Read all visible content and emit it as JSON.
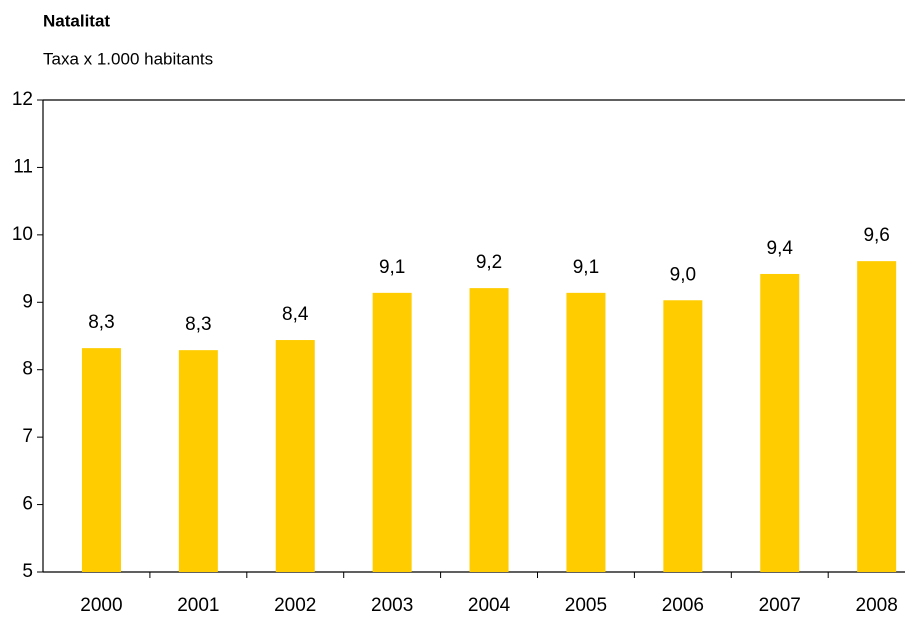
{
  "chart_data": {
    "type": "bar",
    "title": "Natalitat",
    "subtitle": "Taxa x 1.000 habitants",
    "categories": [
      "2000",
      "2001",
      "2002",
      "2003",
      "2004",
      "2005",
      "2006",
      "2007",
      "2008"
    ],
    "values": [
      8.32,
      8.29,
      8.44,
      9.14,
      9.21,
      9.14,
      9.03,
      9.42,
      9.61
    ],
    "value_labels": [
      "8,3",
      "8,3",
      "8,4",
      "9,1",
      "9,2",
      "9,1",
      "9,0",
      "9,4",
      "9,6"
    ],
    "color": "#ffcc00",
    "ylim": [
      5,
      12
    ],
    "yticks": [
      5,
      6,
      7,
      8,
      9,
      10,
      11,
      12
    ],
    "grid": false
  }
}
